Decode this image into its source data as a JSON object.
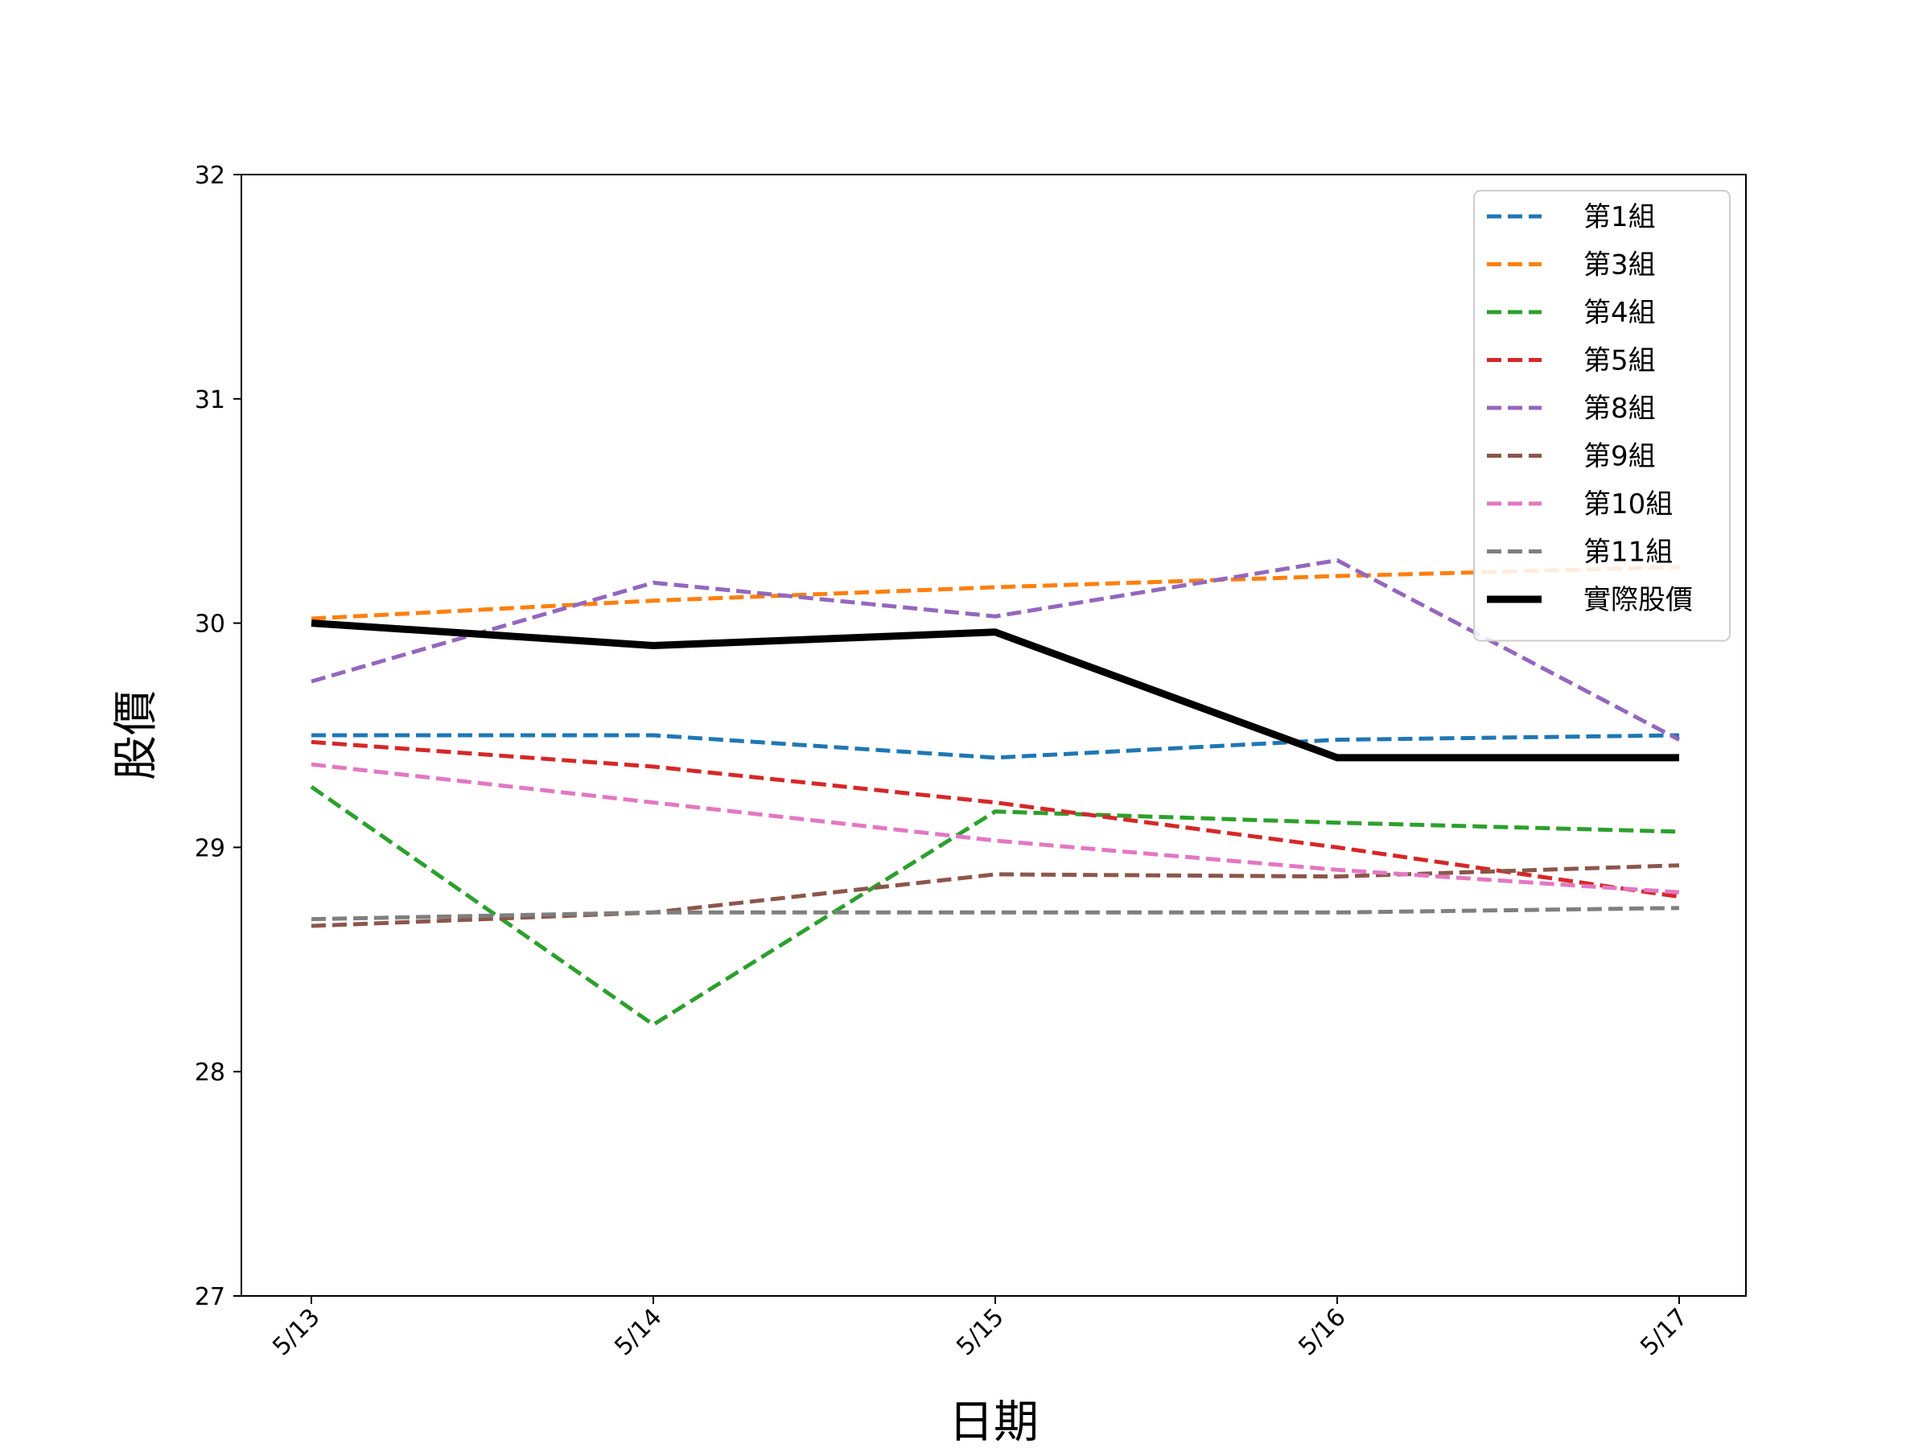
{
  "chart_data": {
    "type": "line",
    "title": "",
    "xlabel": "日期",
    "ylabel": "股價",
    "categories": [
      "5/13",
      "5/14",
      "5/15",
      "5/16",
      "5/17"
    ],
    "ylim": [
      27,
      32
    ],
    "yticks": [
      27,
      28,
      29,
      30,
      31,
      32
    ],
    "grid": false,
    "legend_position": "top-right",
    "series": [
      {
        "name": "第1組",
        "values": [
          29.5,
          29.5,
          29.4,
          29.48,
          29.5
        ],
        "color": "#1f77b4",
        "style": "dashed"
      },
      {
        "name": "第3組",
        "values": [
          30.02,
          30.1,
          30.16,
          30.21,
          30.25
        ],
        "color": "#ff7f0e",
        "style": "dashed"
      },
      {
        "name": "第4組",
        "values": [
          29.27,
          28.21,
          29.16,
          29.11,
          29.07
        ],
        "color": "#2ca02c",
        "style": "dashed"
      },
      {
        "name": "第5組",
        "values": [
          29.47,
          29.36,
          29.2,
          29.0,
          28.78
        ],
        "color": "#d62728",
        "style": "dashed"
      },
      {
        "name": "第8組",
        "values": [
          29.74,
          30.18,
          30.03,
          30.28,
          29.48
        ],
        "color": "#9467bd",
        "style": "dashed"
      },
      {
        "name": "第9組",
        "values": [
          28.65,
          28.71,
          28.88,
          28.87,
          28.92
        ],
        "color": "#8c564b",
        "style": "dashed"
      },
      {
        "name": "第10組",
        "values": [
          29.37,
          29.2,
          29.03,
          28.9,
          28.8
        ],
        "color": "#e377c2",
        "style": "dashed"
      },
      {
        "name": "第11組",
        "values": [
          28.68,
          28.71,
          28.71,
          28.71,
          28.73
        ],
        "color": "#7f7f7f",
        "style": "dashed"
      },
      {
        "name": "實際股價",
        "values": [
          30.0,
          29.9,
          29.96,
          29.4,
          29.4
        ],
        "color": "#000000",
        "style": "solid"
      }
    ]
  }
}
